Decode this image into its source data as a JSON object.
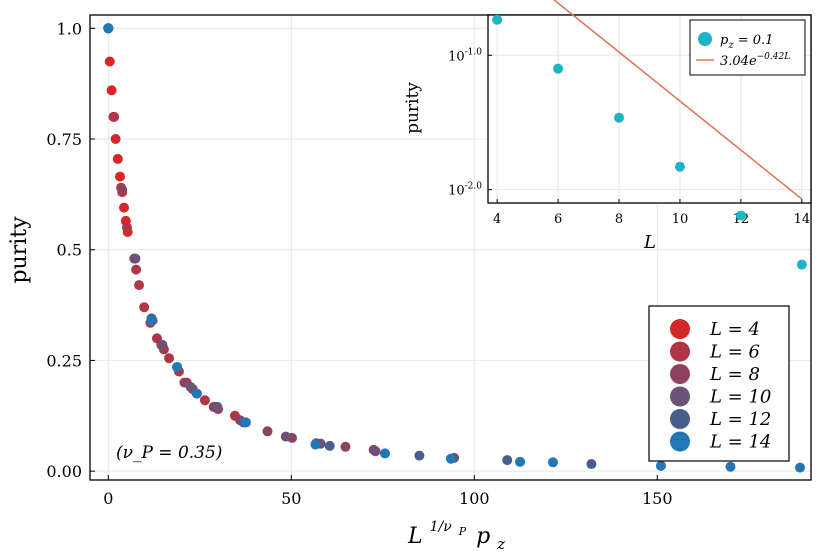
{
  "chart_data": [
    {
      "type": "scatter",
      "title": "",
      "xlabel_base": "L",
      "xlabel_sup": "1/ν",
      "xlabel_sup_sub": "P",
      "xlabel_tail": "p",
      "xlabel_tail_sub": "z",
      "ylabel": "purity",
      "xlim": [
        -5,
        192
      ],
      "ylim": [
        -0.02,
        1.03
      ],
      "xticks": [
        0,
        50,
        100,
        150
      ],
      "xtick_labels": [
        "0",
        "50",
        "100",
        "150"
      ],
      "yticks": [
        0,
        0.25,
        0.5,
        0.75,
        1.0
      ],
      "ytick_labels": [
        "0.00",
        "0.25",
        "0.5",
        "0.75",
        "1.0"
      ],
      "grid": true,
      "legend_position": "bottom-right",
      "annotation": "(ν_P = 0.35)",
      "series": [
        {
          "name": "L = 4",
          "label_text": "L = 4",
          "color": "#d62728",
          "points": [
            [
              0,
              1.0
            ],
            [
              0.4,
              0.925
            ],
            [
              0.9,
              0.86
            ],
            [
              1.4,
              0.8
            ],
            [
              2.0,
              0.75
            ],
            [
              2.6,
              0.705
            ],
            [
              3.2,
              0.665
            ],
            [
              3.8,
              0.63
            ],
            [
              4.3,
              0.595
            ],
            [
              4.8,
              0.565
            ],
            [
              5.3,
              0.54
            ]
          ]
        },
        {
          "name": "L = 6",
          "label_text": "L = 6",
          "color": "#b03545",
          "points": [
            [
              0,
              1.0
            ],
            [
              1.6,
              0.8
            ],
            [
              3.5,
              0.64
            ],
            [
              5.1,
              0.55
            ],
            [
              7.1,
              0.48
            ],
            [
              7.6,
              0.455
            ],
            [
              8.4,
              0.42
            ],
            [
              9.8,
              0.37
            ],
            [
              11.5,
              0.335
            ],
            [
              13.3,
              0.3
            ],
            [
              15.2,
              0.275
            ],
            [
              16.6,
              0.255
            ],
            [
              19.3,
              0.225
            ],
            [
              21.4,
              0.2
            ],
            [
              23.1,
              0.185
            ],
            [
              26.4,
              0.16
            ],
            [
              30.0,
              0.14
            ],
            [
              34.6,
              0.125
            ]
          ]
        },
        {
          "name": "L = 8",
          "label_text": "L = 8",
          "color": "#8e4262",
          "points": [
            [
              0,
              1.0
            ],
            [
              3.8,
              0.635
            ],
            [
              7.2,
              0.48
            ],
            [
              12.1,
              0.34
            ],
            [
              14.5,
              0.285
            ],
            [
              20.8,
              0.2
            ],
            [
              28.8,
              0.145
            ],
            [
              36.0,
              0.115
            ],
            [
              43.5,
              0.09
            ],
            [
              50.2,
              0.075
            ],
            [
              56.8,
              0.063
            ],
            [
              64.8,
              0.055
            ],
            [
              72.5,
              0.048
            ]
          ]
        },
        {
          "name": "L = 10",
          "label_text": "L = 10",
          "color": "#6a5278",
          "points": [
            [
              0,
              1.0
            ],
            [
              7.4,
              0.48
            ],
            [
              14.8,
              0.285
            ],
            [
              22.5,
              0.19
            ],
            [
              29.8,
              0.145
            ],
            [
              37.5,
              0.11
            ],
            [
              48.5,
              0.078
            ],
            [
              58.0,
              0.062
            ],
            [
              73.0,
              0.045
            ],
            [
              94.5,
              0.03
            ]
          ]
        },
        {
          "name": "L = 12",
          "label_text": "L = 12",
          "color": "#4a5e8e",
          "points": [
            [
              0,
              1.0
            ],
            [
              11.8,
              0.345
            ],
            [
              18.8,
              0.235
            ],
            [
              24.2,
              0.175
            ],
            [
              37.0,
              0.11
            ],
            [
              60.5,
              0.057
            ],
            [
              85.0,
              0.035
            ],
            [
              109.0,
              0.025
            ],
            [
              132.0,
              0.016
            ]
          ]
        },
        {
          "name": "L = 14",
          "label_text": "L = 14",
          "color": "#2277b4",
          "points": [
            [
              0,
              1.0
            ],
            [
              11.8,
              0.34
            ],
            [
              18.8,
              0.235
            ],
            [
              24.2,
              0.175
            ],
            [
              37.6,
              0.11
            ],
            [
              56.6,
              0.06
            ],
            [
              75.6,
              0.04
            ],
            [
              93.6,
              0.028
            ],
            [
              112.5,
              0.021
            ],
            [
              121.5,
              0.02
            ],
            [
              151.0,
              0.012
            ],
            [
              170.0,
              0.01
            ],
            [
              189.0,
              0.008
            ]
          ]
        }
      ]
    },
    {
      "type": "scatter",
      "title": "",
      "xlabel": "L",
      "ylabel": "purity",
      "yscale": "log10",
      "xlim": [
        3.7,
        14.3
      ],
      "ylim_log10": [
        -2.1,
        -0.7
      ],
      "xticks": [
        4,
        6,
        8,
        10,
        12,
        14
      ],
      "xtick_labels": [
        "4",
        "6",
        "8",
        "10",
        "12",
        "14"
      ],
      "yticks_log10": [
        -2.0,
        -1.0
      ],
      "ytick_base": "10",
      "ytick_exponents": [
        "-2.0",
        "-1.0"
      ],
      "grid": true,
      "legend_position": "top-right",
      "series": [
        {
          "name": "p_z = 0.1",
          "label_main": "p",
          "label_sub": "z",
          "label_tail": " = 0.1",
          "color": "#1fb3c8",
          "points": [
            [
              4,
              0.184
            ],
            [
              6,
              0.0795
            ],
            [
              8,
              0.0343
            ],
            [
              10,
              0.0148
            ],
            [
              12,
              0.0064
            ],
            [
              14,
              0.00276
            ]
          ]
        }
      ],
      "fit": {
        "label_main": "3.04e",
        "label_sup": "−0.42L",
        "A": 3.04,
        "k": 0.42,
        "color": "#e07050"
      }
    }
  ]
}
